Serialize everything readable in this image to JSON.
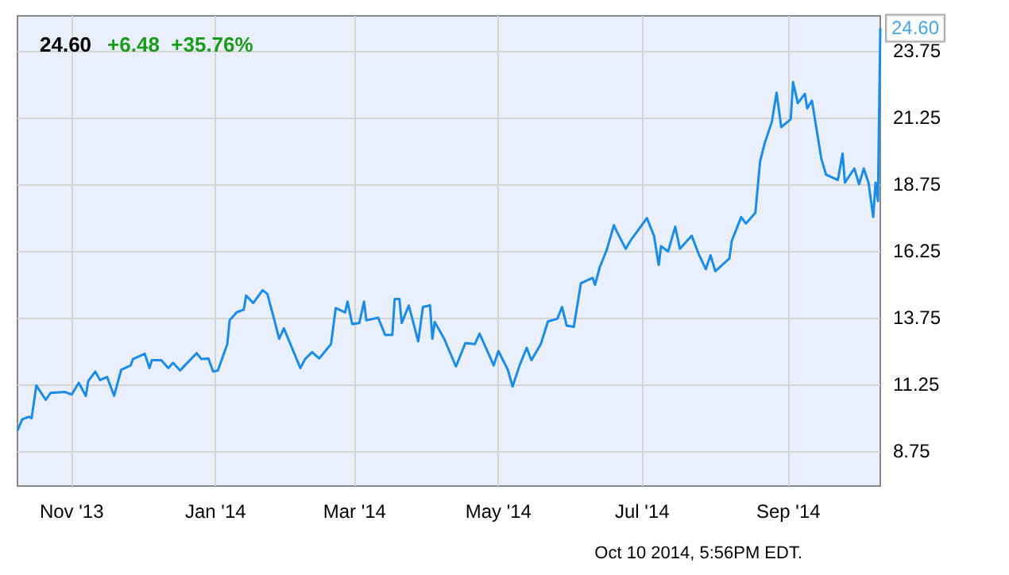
{
  "chart_data": {
    "type": "line",
    "title": "24.60",
    "subtitle": "+6.48  +35.76%",
    "x": [
      "2013-10-09",
      "2013-10-11",
      "2013-10-14",
      "2013-10-15",
      "2013-10-17",
      "2013-10-21",
      "2013-10-23",
      "2013-10-29",
      "2013-11-01",
      "2013-11-04",
      "2013-11-07",
      "2013-11-08",
      "2013-11-11",
      "2013-11-13",
      "2013-11-16",
      "2013-11-19",
      "2013-11-22",
      "2013-11-26",
      "2013-11-27",
      "2013-12-02",
      "2013-12-04",
      "2013-12-05",
      "2013-12-09",
      "2013-12-12",
      "2013-12-14",
      "2013-12-17",
      "2013-12-19",
      "2013-12-24",
      "2013-12-26",
      "2013-12-29",
      "2013-12-31",
      "2014-01-02",
      "2014-01-06",
      "2014-01-07",
      "2014-01-10",
      "2014-01-13",
      "2014-01-14",
      "2014-01-17",
      "2014-01-21",
      "2014-01-23",
      "2014-01-26",
      "2014-01-28",
      "2014-01-30",
      "2014-02-06",
      "2014-02-08",
      "2014-02-11",
      "2014-02-14",
      "2014-02-19",
      "2014-02-21",
      "2014-02-25",
      "2014-02-26",
      "2014-02-28",
      "2014-03-03",
      "2014-03-05",
      "2014-03-06",
      "2014-03-11",
      "2014-03-14",
      "2014-03-17",
      "2014-03-18",
      "2014-03-20",
      "2014-03-21",
      "2014-03-24",
      "2014-03-28",
      "2014-03-30",
      "2014-04-02",
      "2014-04-03",
      "2014-04-04",
      "2014-04-08",
      "2014-04-13",
      "2014-04-17",
      "2014-04-21",
      "2014-04-23",
      "2014-04-26",
      "2014-04-29",
      "2014-05-01",
      "2014-05-05",
      "2014-05-07",
      "2014-05-10",
      "2014-05-13",
      "2014-05-15",
      "2014-05-19",
      "2014-05-22",
      "2014-05-26",
      "2014-05-28",
      "2014-05-30",
      "2014-06-02",
      "2014-06-05",
      "2014-06-10",
      "2014-06-11",
      "2014-06-13",
      "2014-06-16",
      "2014-06-19",
      "2014-06-20",
      "2014-06-24",
      "2014-06-26",
      "2014-06-30",
      "2014-07-03",
      "2014-07-06",
      "2014-07-08",
      "2014-07-09",
      "2014-07-12",
      "2014-07-15",
      "2014-07-17",
      "2014-07-22",
      "2014-07-25",
      "2014-07-28",
      "2014-07-30",
      "2014-08-01",
      "2014-08-07",
      "2014-08-08",
      "2014-08-12",
      "2014-08-14",
      "2014-08-18",
      "2014-08-20",
      "2014-08-22",
      "2014-08-25",
      "2014-08-27",
      "2014-08-29",
      "2014-09-02",
      "2014-09-03",
      "2014-09-05",
      "2014-09-08",
      "2014-09-09",
      "2014-09-11",
      "2014-09-15",
      "2014-09-17",
      "2014-09-22",
      "2014-09-24",
      "2014-09-25",
      "2014-09-29",
      "2014-10-01",
      "2014-10-03",
      "2014-10-05",
      "2014-10-07",
      "2014-10-08",
      "2014-10-09",
      "2014-10-10"
    ],
    "series": [
      {
        "color": "#1a8ce8",
        "values": [
          9.52,
          9.94,
          10.04,
          9.98,
          11.21,
          10.67,
          10.93,
          10.97,
          10.87,
          11.31,
          10.82,
          11.37,
          11.73,
          11.41,
          11.53,
          10.82,
          11.8,
          11.96,
          12.2,
          12.4,
          11.86,
          12.16,
          12.16,
          11.86,
          12.06,
          11.77,
          11.96,
          12.42,
          12.2,
          12.22,
          11.73,
          11.77,
          12.76,
          13.65,
          13.95,
          14.05,
          14.58,
          14.3,
          14.78,
          14.64,
          13.65,
          12.96,
          13.35,
          11.86,
          12.2,
          12.46,
          12.22,
          12.76,
          14.11,
          13.95,
          14.35,
          13.51,
          13.55,
          14.35,
          13.65,
          13.75,
          13.1,
          13.1,
          14.45,
          14.45,
          13.55,
          14.21,
          12.86,
          14.15,
          14.21,
          12.96,
          13.59,
          12.96,
          11.92,
          12.8,
          12.76,
          13.15,
          12.56,
          11.96,
          12.5,
          11.8,
          11.17,
          11.96,
          12.62,
          12.16,
          12.76,
          13.61,
          13.71,
          14.15,
          13.45,
          13.41,
          15.04,
          15.24,
          14.98,
          15.64,
          16.3,
          17.22,
          17.02,
          16.33,
          16.63,
          17.12,
          17.48,
          16.82,
          15.73,
          16.43,
          16.23,
          17.16,
          16.33,
          16.82,
          16.13,
          15.57,
          16.09,
          15.49,
          15.97,
          16.63,
          17.52,
          17.28,
          17.68,
          19.6,
          20.3,
          21.09,
          22.18,
          20.89,
          21.19,
          22.58,
          21.79,
          22.14,
          21.59,
          21.88,
          19.7,
          19.11,
          18.91,
          19.9,
          18.81,
          19.34,
          18.75,
          19.34,
          18.81,
          17.52,
          18.81,
          18.12,
          24.6
        ]
      }
    ],
    "xlim": [
      "2013-10-09",
      "2014-10-10"
    ],
    "xticks": [
      {
        "value": "2013-11-01",
        "label": "Nov '13"
      },
      {
        "value": "2014-01-01",
        "label": "Jan '14"
      },
      {
        "value": "2014-03-01",
        "label": "Mar '14"
      },
      {
        "value": "2014-05-01",
        "label": "May '14"
      },
      {
        "value": "2014-07-01",
        "label": "Jul '14"
      },
      {
        "value": "2014-09-01",
        "label": "Sep '14"
      }
    ],
    "ylim": [
      7.44,
      25.06
    ],
    "yticks": [
      8.75,
      11.25,
      13.75,
      16.25,
      18.75,
      21.25,
      23.75
    ],
    "grid": true,
    "marker": "none",
    "line_style": "solid",
    "annotations": [
      {
        "text": "24.60",
        "x": "2014-10-10",
        "y": 24.6
      },
      "Oct 10 2014, 5:56PM EDT."
    ]
  }
}
